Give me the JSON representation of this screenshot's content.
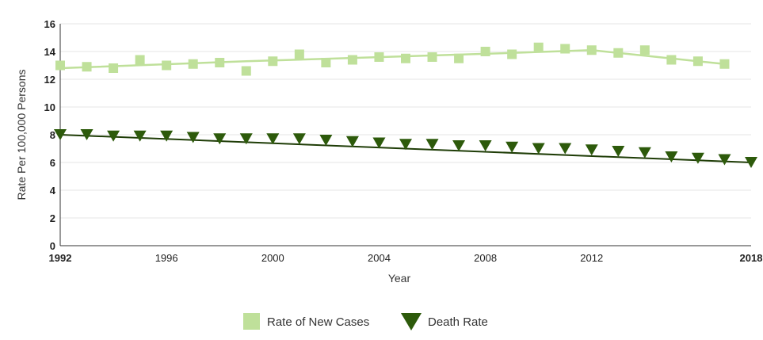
{
  "chart_data": {
    "type": "line",
    "xlabel": "Year",
    "ylabel": "Rate Per 100,000 Persons",
    "xlim": [
      1992,
      2018
    ],
    "ylim": [
      0,
      16
    ],
    "y_ticks": [
      0,
      2,
      4,
      6,
      8,
      10,
      12,
      14,
      16
    ],
    "x_ticks": [
      "1992",
      "1996",
      "2000",
      "2004",
      "2008",
      "2012",
      "2018"
    ],
    "x_ticks_bold": [
      "1992",
      "2018"
    ],
    "grid": "horizontal",
    "legend_position": "bottom",
    "series": [
      {
        "name": "Rate of New Cases",
        "marker": "square",
        "color": "#bfe09a",
        "line_color": "#bfe09a",
        "x": [
          1992,
          1993,
          1994,
          1995,
          1996,
          1997,
          1998,
          1999,
          2000,
          2001,
          2002,
          2003,
          2004,
          2005,
          2006,
          2007,
          2008,
          2009,
          2010,
          2011,
          2012,
          2013,
          2014,
          2015,
          2016,
          2017
        ],
        "values": [
          13.0,
          12.9,
          12.8,
          13.4,
          13.0,
          13.1,
          13.2,
          12.6,
          13.3,
          13.8,
          13.2,
          13.4,
          13.6,
          13.5,
          13.6,
          13.5,
          14.0,
          13.8,
          14.3,
          14.2,
          14.1,
          13.9,
          14.1,
          13.4,
          13.3,
          13.1
        ],
        "trend": {
          "x": [
            1992,
            1999,
            2009,
            2012,
            2015,
            2017
          ],
          "values": [
            12.8,
            13.3,
            13.9,
            14.1,
            13.5,
            13.1
          ]
        }
      },
      {
        "name": "Death Rate",
        "marker": "triangle-down",
        "color": "#2d5a0b",
        "line_color": "#1f3d07",
        "x": [
          1992,
          1993,
          1994,
          1995,
          1996,
          1997,
          1998,
          1999,
          2000,
          2001,
          2002,
          2003,
          2004,
          2005,
          2006,
          2007,
          2008,
          2009,
          2010,
          2011,
          2012,
          2013,
          2014,
          2015,
          2016,
          2017,
          2018
        ],
        "values": [
          8.0,
          8.0,
          7.9,
          7.9,
          7.9,
          7.8,
          7.7,
          7.7,
          7.7,
          7.7,
          7.6,
          7.5,
          7.4,
          7.3,
          7.3,
          7.2,
          7.2,
          7.1,
          7.0,
          7.0,
          6.9,
          6.8,
          6.7,
          6.4,
          6.3,
          6.2,
          6.0
        ],
        "trend": {
          "x": [
            1992,
            2018
          ],
          "values": [
            8.0,
            6.0
          ]
        }
      }
    ]
  }
}
